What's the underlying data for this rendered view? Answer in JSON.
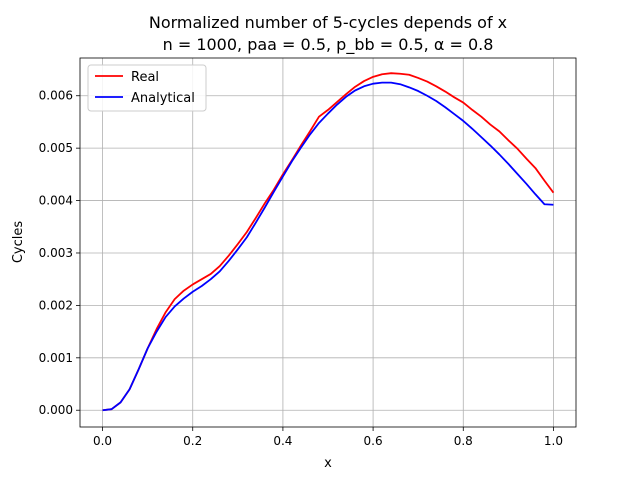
{
  "chart_data": {
    "type": "line",
    "title": "Normalized number of 5-cycles depends of x",
    "subtitle": "n = 1000, paa = 0.5, p_bb = 0.5, α = 0.8",
    "xlabel": "x",
    "ylabel": "Cycles",
    "xlim": [
      -0.05,
      1.05
    ],
    "ylim": [
      -0.00032,
      0.00672
    ],
    "xticks": [
      0.0,
      0.2,
      0.4,
      0.6,
      0.8,
      1.0
    ],
    "xtick_labels": [
      "0.0",
      "0.2",
      "0.4",
      "0.6",
      "0.8",
      "1.0"
    ],
    "yticks": [
      0.0,
      0.001,
      0.002,
      0.003,
      0.004,
      0.005,
      0.006
    ],
    "ytick_labels": [
      "0.000",
      "0.001",
      "0.002",
      "0.003",
      "0.004",
      "0.005",
      "0.006"
    ],
    "grid": true,
    "legend_position": "upper-left",
    "series": [
      {
        "name": "Real",
        "color": "#ff0000",
        "x": [
          0.0,
          0.02,
          0.04,
          0.06,
          0.08,
          0.1,
          0.12,
          0.14,
          0.16,
          0.18,
          0.2,
          0.22,
          0.24,
          0.26,
          0.28,
          0.3,
          0.32,
          0.34,
          0.36,
          0.38,
          0.4,
          0.42,
          0.44,
          0.46,
          0.48,
          0.5,
          0.52,
          0.54,
          0.56,
          0.58,
          0.6,
          0.62,
          0.64,
          0.66,
          0.68,
          0.7,
          0.72,
          0.74,
          0.76,
          0.78,
          0.8,
          0.82,
          0.84,
          0.86,
          0.88,
          0.9,
          0.92,
          0.94,
          0.96,
          0.98,
          1.0
        ],
        "y": [
          0.0,
          2e-05,
          0.00015,
          0.0004,
          0.00078,
          0.00118,
          0.00155,
          0.00187,
          0.00212,
          0.00228,
          0.0024,
          0.0025,
          0.0026,
          0.00275,
          0.00295,
          0.00317,
          0.0034,
          0.00367,
          0.00395,
          0.00421,
          0.0045,
          0.00477,
          0.00505,
          0.00532,
          0.0056,
          0.00573,
          0.00588,
          0.00603,
          0.00617,
          0.00628,
          0.00636,
          0.00641,
          0.00643,
          0.00642,
          0.0064,
          0.00634,
          0.00627,
          0.00618,
          0.00608,
          0.00597,
          0.00587,
          0.00573,
          0.0056,
          0.00545,
          0.00532,
          0.00515,
          0.00499,
          0.0048,
          0.00462,
          0.00438,
          0.00415
        ]
      },
      {
        "name": "Analytical",
        "color": "#0000ff",
        "x": [
          0.0,
          0.02,
          0.04,
          0.06,
          0.08,
          0.1,
          0.12,
          0.14,
          0.16,
          0.18,
          0.2,
          0.22,
          0.24,
          0.26,
          0.28,
          0.3,
          0.32,
          0.34,
          0.36,
          0.38,
          0.4,
          0.42,
          0.44,
          0.46,
          0.48,
          0.5,
          0.52,
          0.54,
          0.56,
          0.58,
          0.6,
          0.62,
          0.64,
          0.66,
          0.68,
          0.7,
          0.72,
          0.74,
          0.76,
          0.78,
          0.8,
          0.82,
          0.84,
          0.86,
          0.88,
          0.9,
          0.92,
          0.94,
          0.96,
          0.98,
          1.0
        ],
        "y": [
          0.0,
          2e-05,
          0.00015,
          0.0004,
          0.00078,
          0.00118,
          0.0015,
          0.00178,
          0.00198,
          0.00213,
          0.00226,
          0.00237,
          0.0025,
          0.00265,
          0.00285,
          0.00307,
          0.0033,
          0.00358,
          0.00387,
          0.00417,
          0.00446,
          0.00475,
          0.00501,
          0.00526,
          0.00548,
          0.00566,
          0.00583,
          0.00598,
          0.0061,
          0.00618,
          0.00623,
          0.00625,
          0.00625,
          0.00622,
          0.00616,
          0.00609,
          0.006,
          0.0059,
          0.00578,
          0.00565,
          0.00552,
          0.00537,
          0.00521,
          0.00505,
          0.00488,
          0.0047,
          0.00451,
          0.00432,
          0.00412,
          0.00393,
          0.00392
        ]
      }
    ]
  }
}
